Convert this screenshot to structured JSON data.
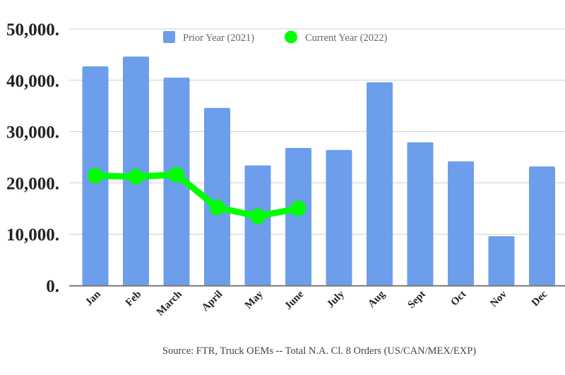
{
  "chart_data": {
    "type": "bar",
    "title": "",
    "xlabel": "",
    "ylabel": "",
    "ylim": [
      0,
      50000
    ],
    "yticks": [
      0,
      10000,
      20000,
      30000,
      40000,
      50000
    ],
    "ytick_labels": [
      "0.",
      "10,000.",
      "20,000.",
      "30,000.",
      "40,000.",
      "50,000."
    ],
    "grid": true,
    "legend_placement": "top-center",
    "categories": [
      "Jan",
      "Feb",
      "March",
      "April",
      "May",
      "June",
      "July",
      "Aug",
      "Sept",
      "Oct",
      "Nov",
      "Dec"
    ],
    "series": [
      {
        "name": "Prior Year (2021)",
        "type": "bar",
        "color": "#6d9eeb",
        "values": [
          42700,
          44600,
          40500,
          34600,
          23400,
          26800,
          26400,
          39600,
          27900,
          24200,
          9600,
          23200
        ]
      },
      {
        "name": "Current Year (2022)",
        "type": "line",
        "color": "#00ff00",
        "values": [
          21400,
          21200,
          21600,
          15200,
          13500,
          15000,
          null,
          null,
          null,
          null,
          null,
          null
        ]
      }
    ],
    "source": "Source: FTR, Truck OEMs -- Total N.A. Cl. 8 Orders (US/CAN/MEX/EXP)"
  }
}
